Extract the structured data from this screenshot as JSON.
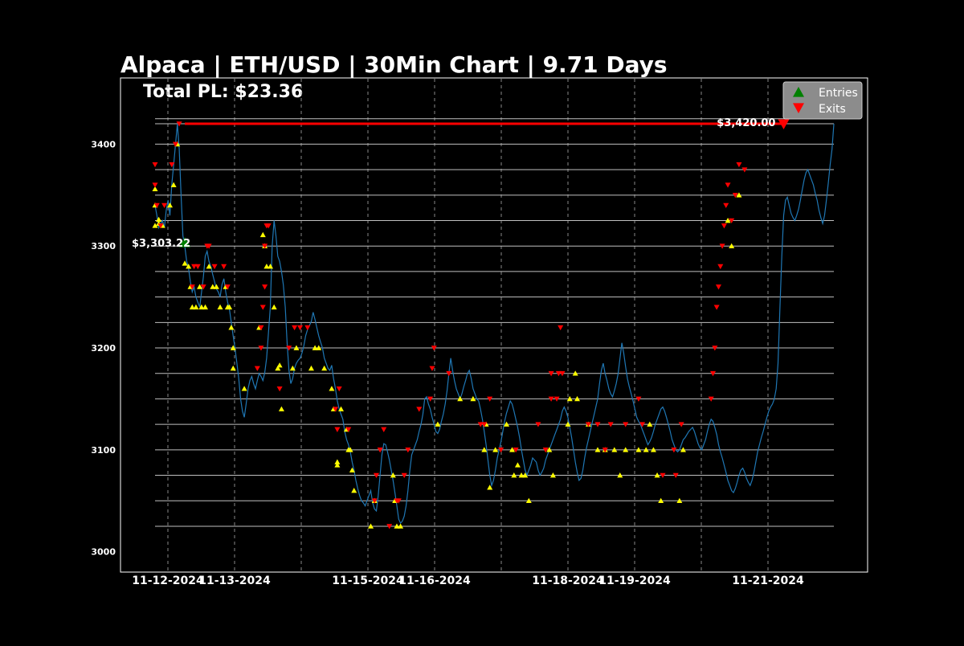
{
  "chart_data": {
    "type": "line",
    "title": "Alpaca | ETH/USD | 30Min Chart | 9.71 Days",
    "subtitle": "Total PL: $23.36",
    "xlabel": "",
    "ylabel": "",
    "x_range": [
      "2024-11-11",
      "2024-11-21"
    ],
    "ylim": [
      2980,
      3465
    ],
    "yticks": [
      3000,
      3100,
      3200,
      3300,
      3400
    ],
    "xticks": [
      "11-12-2024",
      "11-13-2024",
      "11-15-2024",
      "11-16-2024",
      "11-18-2024",
      "11-19-2024",
      "11-21-2024"
    ],
    "grid": true,
    "legend_position": "top-right",
    "hlines": [
      3025,
      3050,
      3075,
      3100,
      3125,
      3150,
      3175,
      3200,
      3225,
      3250,
      3275,
      3300,
      3325,
      3350,
      3375,
      3400,
      3420,
      3425
    ],
    "series": [
      {
        "values": [
          3340,
          3330,
          3318,
          3322,
          3325,
          3318,
          3335,
          3345,
          3330,
          3360,
          3380,
          3400,
          3420,
          3395,
          3350,
          3310,
          3300,
          3285,
          3278,
          3265,
          3255,
          3260,
          3250,
          3245,
          3240,
          3255,
          3270,
          3290,
          3295,
          3285,
          3280,
          3272,
          3265,
          3258,
          3255,
          3250,
          3262,
          3268,
          3255,
          3245,
          3238,
          3225,
          3212,
          3200,
          3185,
          3170,
          3150,
          3138,
          3132,
          3145,
          3160,
          3168,
          3172,
          3165,
          3160,
          3168,
          3175,
          3172,
          3168,
          3176,
          3190,
          3215,
          3240,
          3300,
          3325,
          3310,
          3290,
          3285,
          3275,
          3262,
          3240,
          3205,
          3178,
          3165,
          3170,
          3180,
          3185,
          3188,
          3190,
          3195,
          3202,
          3212,
          3218,
          3222,
          3226,
          3235,
          3228,
          3220,
          3212,
          3206,
          3200,
          3190,
          3185,
          3180,
          3178,
          3183,
          3170,
          3160,
          3148,
          3140,
          3135,
          3130,
          3118,
          3110,
          3105,
          3098,
          3088,
          3080,
          3070,
          3062,
          3055,
          3050,
          3048,
          3045,
          3050,
          3055,
          3060,
          3048,
          3042,
          3040,
          3055,
          3075,
          3095,
          3106,
          3105,
          3098,
          3090,
          3080,
          3070,
          3058,
          3045,
          3032,
          3028,
          3030,
          3035,
          3045,
          3060,
          3080,
          3095,
          3100,
          3105,
          3110,
          3118,
          3125,
          3135,
          3150,
          3152,
          3145,
          3140,
          3132,
          3125,
          3118,
          3116,
          3120,
          3128,
          3135,
          3145,
          3158,
          3175,
          3190,
          3178,
          3168,
          3160,
          3155,
          3150,
          3155,
          3162,
          3168,
          3175,
          3178,
          3170,
          3160,
          3155,
          3150,
          3148,
          3140,
          3130,
          3118,
          3105,
          3090,
          3075,
          3065,
          3070,
          3080,
          3092,
          3100,
          3108,
          3118,
          3128,
          3136,
          3142,
          3148,
          3145,
          3138,
          3130,
          3122,
          3112,
          3100,
          3090,
          3080,
          3075,
          3080,
          3085,
          3092,
          3090,
          3088,
          3080,
          3075,
          3078,
          3082,
          3090,
          3095,
          3100,
          3105,
          3110,
          3115,
          3120,
          3125,
          3130,
          3138,
          3142,
          3138,
          3132,
          3122,
          3112,
          3100,
          3088,
          3078,
          3070,
          3072,
          3080,
          3092,
          3102,
          3110,
          3118,
          3126,
          3134,
          3142,
          3150,
          3165,
          3178,
          3185,
          3175,
          3168,
          3160,
          3155,
          3152,
          3158,
          3165,
          3175,
          3190,
          3205,
          3195,
          3182,
          3170,
          3162,
          3155,
          3148,
          3140,
          3132,
          3128,
          3125,
          3120,
          3115,
          3110,
          3105,
          3108,
          3112,
          3118,
          3125,
          3130,
          3135,
          3140,
          3142,
          3138,
          3132,
          3125,
          3118,
          3110,
          3105,
          3100,
          3098,
          3100,
          3105,
          3110,
          3112,
          3115,
          3118,
          3120,
          3122,
          3118,
          3112,
          3106,
          3102,
          3100,
          3105,
          3110,
          3118,
          3125,
          3130,
          3128,
          3122,
          3115,
          3105,
          3098,
          3092,
          3085,
          3078,
          3070,
          3065,
          3060,
          3058,
          3062,
          3068,
          3075,
          3080,
          3082,
          3078,
          3072,
          3068,
          3065,
          3070,
          3078,
          3088,
          3098,
          3105,
          3112,
          3118,
          3125,
          3132,
          3138,
          3142,
          3145,
          3150,
          3160,
          3185,
          3240,
          3290,
          3330,
          3345,
          3348,
          3340,
          3332,
          3328,
          3325,
          3330,
          3336,
          3345,
          3355,
          3365,
          3372,
          3375,
          3370,
          3365,
          3360,
          3352,
          3345,
          3335,
          3328,
          3322,
          3330,
          3345,
          3362,
          3380,
          3395,
          3420
        ]
      }
    ],
    "entries": [
      {
        "i": 0,
        "y": 3356
      },
      {
        "i": 0,
        "y": 3340
      },
      {
        "i": 0,
        "y": 3320
      },
      {
        "i": 2,
        "y": 3322
      },
      {
        "i": 2,
        "y": 3326
      },
      {
        "i": 4,
        "y": 3320
      },
      {
        "i": 8,
        "y": 3340
      },
      {
        "i": 10,
        "y": 3360
      },
      {
        "i": 12,
        "y": 3400
      },
      {
        "i": 16,
        "y": 3283
      },
      {
        "i": 18,
        "y": 3280
      },
      {
        "i": 19,
        "y": 3260
      },
      {
        "i": 20,
        "y": 3240
      },
      {
        "i": 22,
        "y": 3240
      },
      {
        "i": 24,
        "y": 3260
      },
      {
        "i": 25,
        "y": 3240
      },
      {
        "i": 27,
        "y": 3240
      },
      {
        "i": 29,
        "y": 3280
      },
      {
        "i": 31,
        "y": 3260
      },
      {
        "i": 33,
        "y": 3260
      },
      {
        "i": 35,
        "y": 3240
      },
      {
        "i": 38,
        "y": 3260
      },
      {
        "i": 39,
        "y": 3240
      },
      {
        "i": 40,
        "y": 3240
      },
      {
        "i": 41,
        "y": 3220
      },
      {
        "i": 42,
        "y": 3200
      },
      {
        "i": 42,
        "y": 3180
      },
      {
        "i": 48,
        "y": 3160
      },
      {
        "i": 56,
        "y": 3220
      },
      {
        "i": 58,
        "y": 3311
      },
      {
        "i": 59,
        "y": 3300
      },
      {
        "i": 60,
        "y": 3280
      },
      {
        "i": 62,
        "y": 3280
      },
      {
        "i": 64,
        "y": 3240
      },
      {
        "i": 66,
        "y": 3180
      },
      {
        "i": 67,
        "y": 3183
      },
      {
        "i": 68,
        "y": 3140
      },
      {
        "i": 74,
        "y": 3180
      },
      {
        "i": 76,
        "y": 3200
      },
      {
        "i": 84,
        "y": 3180
      },
      {
        "i": 86,
        "y": 3200
      },
      {
        "i": 88,
        "y": 3200
      },
      {
        "i": 91,
        "y": 3180
      },
      {
        "i": 95,
        "y": 3160
      },
      {
        "i": 96,
        "y": 3140
      },
      {
        "i": 98,
        "y": 3088
      },
      {
        "i": 98,
        "y": 3085
      },
      {
        "i": 100,
        "y": 3140
      },
      {
        "i": 103,
        "y": 3120
      },
      {
        "i": 104,
        "y": 3100
      },
      {
        "i": 105,
        "y": 3100
      },
      {
        "i": 106,
        "y": 3080
      },
      {
        "i": 107,
        "y": 3060
      },
      {
        "i": 116,
        "y": 3025
      },
      {
        "i": 118,
        "y": 3050
      },
      {
        "i": 128,
        "y": 3075
      },
      {
        "i": 129,
        "y": 3050
      },
      {
        "i": 130,
        "y": 3025
      },
      {
        "i": 132,
        "y": 3025
      },
      {
        "i": 152,
        "y": 3125
      },
      {
        "i": 164,
        "y": 3150
      },
      {
        "i": 171,
        "y": 3150
      },
      {
        "i": 177,
        "y": 3100
      },
      {
        "i": 178,
        "y": 3125
      },
      {
        "i": 180,
        "y": 3063
      },
      {
        "i": 183,
        "y": 3100
      },
      {
        "i": 189,
        "y": 3125
      },
      {
        "i": 192,
        "y": 3100
      },
      {
        "i": 193,
        "y": 3075
      },
      {
        "i": 195,
        "y": 3085
      },
      {
        "i": 197,
        "y": 3075
      },
      {
        "i": 199,
        "y": 3075
      },
      {
        "i": 201,
        "y": 3050
      },
      {
        "i": 212,
        "y": 3100
      },
      {
        "i": 214,
        "y": 3075
      },
      {
        "i": 222,
        "y": 3125
      },
      {
        "i": 223,
        "y": 3150
      },
      {
        "i": 226,
        "y": 3175
      },
      {
        "i": 227,
        "y": 3150
      },
      {
        "i": 233,
        "y": 3125
      },
      {
        "i": 238,
        "y": 3100
      },
      {
        "i": 242,
        "y": 3100
      },
      {
        "i": 247,
        "y": 3100
      },
      {
        "i": 250,
        "y": 3075
      },
      {
        "i": 253,
        "y": 3100
      },
      {
        "i": 260,
        "y": 3100
      },
      {
        "i": 264,
        "y": 3100
      },
      {
        "i": 266,
        "y": 3125
      },
      {
        "i": 268,
        "y": 3100
      },
      {
        "i": 270,
        "y": 3075
      },
      {
        "i": 272,
        "y": 3050
      },
      {
        "i": 282,
        "y": 3050
      },
      {
        "i": 284,
        "y": 3100
      },
      {
        "i": 308,
        "y": 3325
      },
      {
        "i": 310,
        "y": 3300
      },
      {
        "i": 314,
        "y": 3350
      }
    ],
    "exits": [
      {
        "i": 0,
        "y": 3380
      },
      {
        "i": 0,
        "y": 3360
      },
      {
        "i": 1,
        "y": 3340
      },
      {
        "i": 3,
        "y": 3320
      },
      {
        "i": 5,
        "y": 3340
      },
      {
        "i": 9,
        "y": 3380
      },
      {
        "i": 11,
        "y": 3400
      },
      {
        "i": 13,
        "y": 3420
      },
      {
        "i": 20,
        "y": 3260
      },
      {
        "i": 21,
        "y": 3280
      },
      {
        "i": 23,
        "y": 3280
      },
      {
        "i": 26,
        "y": 3260
      },
      {
        "i": 28,
        "y": 3300
      },
      {
        "i": 29,
        "y": 3300
      },
      {
        "i": 32,
        "y": 3280
      },
      {
        "i": 37,
        "y": 3280
      },
      {
        "i": 39,
        "y": 3260
      },
      {
        "i": 55,
        "y": 3180
      },
      {
        "i": 57,
        "y": 3200
      },
      {
        "i": 57,
        "y": 3220
      },
      {
        "i": 58,
        "y": 3240
      },
      {
        "i": 59,
        "y": 3260
      },
      {
        "i": 59,
        "y": 3300
      },
      {
        "i": 60,
        "y": 3320
      },
      {
        "i": 61,
        "y": 3320
      },
      {
        "i": 67,
        "y": 3160
      },
      {
        "i": 72,
        "y": 3200
      },
      {
        "i": 75,
        "y": 3220
      },
      {
        "i": 78,
        "y": 3220
      },
      {
        "i": 82,
        "y": 3220
      },
      {
        "i": 97,
        "y": 3140
      },
      {
        "i": 98,
        "y": 3120
      },
      {
        "i": 99,
        "y": 3160
      },
      {
        "i": 104,
        "y": 3120
      },
      {
        "i": 118,
        "y": 3050
      },
      {
        "i": 119,
        "y": 3075
      },
      {
        "i": 121,
        "y": 3100
      },
      {
        "i": 123,
        "y": 3120
      },
      {
        "i": 126,
        "y": 3025
      },
      {
        "i": 130,
        "y": 3050
      },
      {
        "i": 131,
        "y": 3050
      },
      {
        "i": 134,
        "y": 3075
      },
      {
        "i": 136,
        "y": 3100
      },
      {
        "i": 142,
        "y": 3140
      },
      {
        "i": 148,
        "y": 3150
      },
      {
        "i": 149,
        "y": 3180
      },
      {
        "i": 150,
        "y": 3200
      },
      {
        "i": 158,
        "y": 3175
      },
      {
        "i": 175,
        "y": 3125
      },
      {
        "i": 177,
        "y": 3125
      },
      {
        "i": 180,
        "y": 3150
      },
      {
        "i": 186,
        "y": 3100
      },
      {
        "i": 194,
        "y": 3100
      },
      {
        "i": 206,
        "y": 3125
      },
      {
        "i": 210,
        "y": 3100
      },
      {
        "i": 213,
        "y": 3150
      },
      {
        "i": 213,
        "y": 3175
      },
      {
        "i": 216,
        "y": 3150
      },
      {
        "i": 217,
        "y": 3175
      },
      {
        "i": 218,
        "y": 3220
      },
      {
        "i": 219,
        "y": 3175
      },
      {
        "i": 233,
        "y": 3125
      },
      {
        "i": 238,
        "y": 3125
      },
      {
        "i": 242,
        "y": 3100
      },
      {
        "i": 245,
        "y": 3125
      },
      {
        "i": 253,
        "y": 3125
      },
      {
        "i": 260,
        "y": 3150
      },
      {
        "i": 262,
        "y": 3125
      },
      {
        "i": 273,
        "y": 3075
      },
      {
        "i": 279,
        "y": 3100
      },
      {
        "i": 280,
        "y": 3075
      },
      {
        "i": 283,
        "y": 3125
      },
      {
        "i": 299,
        "y": 3150
      },
      {
        "i": 300,
        "y": 3175
      },
      {
        "i": 301,
        "y": 3200
      },
      {
        "i": 302,
        "y": 3240
      },
      {
        "i": 303,
        "y": 3260
      },
      {
        "i": 304,
        "y": 3280
      },
      {
        "i": 305,
        "y": 3300
      },
      {
        "i": 306,
        "y": 3320
      },
      {
        "i": 307,
        "y": 3340
      },
      {
        "i": 308,
        "y": 3360
      },
      {
        "i": 310,
        "y": 3325
      },
      {
        "i": 312,
        "y": 3350
      },
      {
        "i": 314,
        "y": 3380
      },
      {
        "i": 317,
        "y": 3375
      }
    ],
    "entry_price": {
      "i": 16,
      "y": 3303.22,
      "label": "$3,303.22"
    },
    "exit_price": {
      "i": 338,
      "y": 3420.0,
      "label": "$3,420.00"
    },
    "target_line": {
      "value": 3420
    },
    "legend": [
      {
        "label": "Entries",
        "color": "#008000",
        "marker": "triangle-up"
      },
      {
        "label": "Exits",
        "color": "#ff0000",
        "marker": "triangle-down"
      }
    ],
    "colors": {
      "background": "#000000",
      "price_line": "#1f77b4",
      "entry_marker": "#ffff00",
      "exit_marker": "#ff0000",
      "hline": "#c0c0c0",
      "target_line": "#ff0000"
    }
  }
}
